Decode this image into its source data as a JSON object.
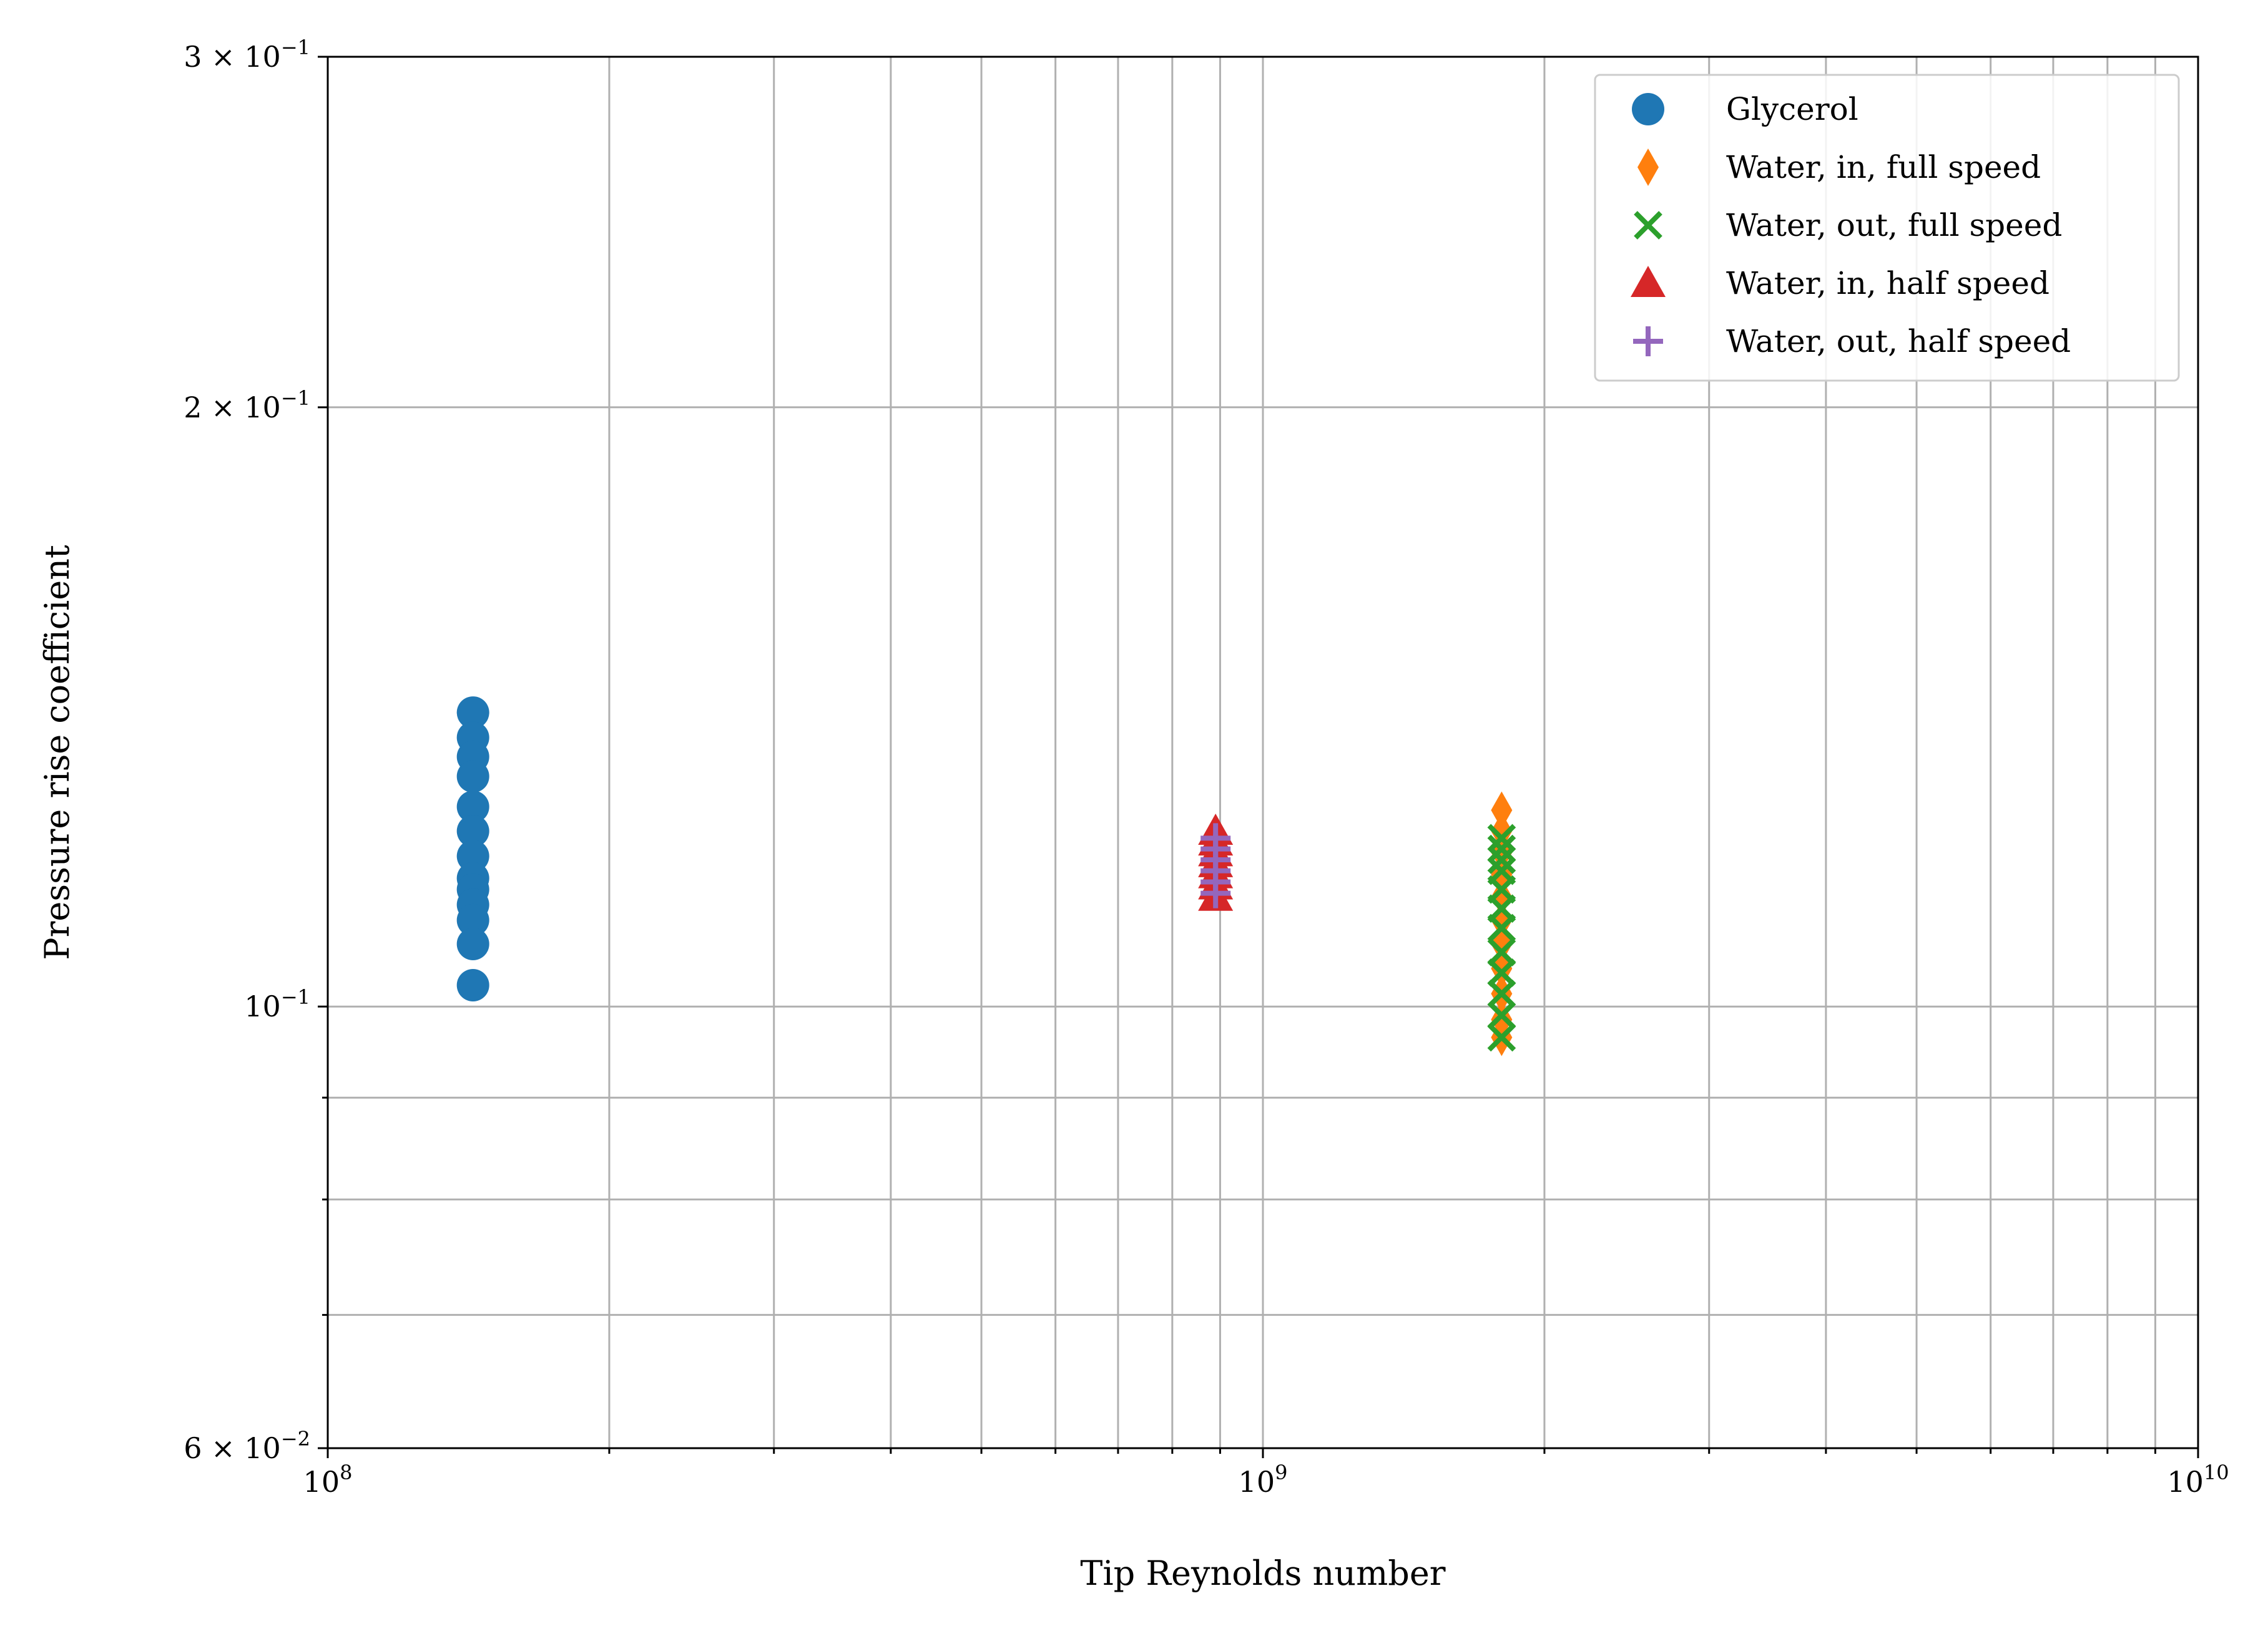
{
  "chart_data": {
    "type": "scatter",
    "title": "",
    "xlabel": "Tip Reynolds number",
    "ylabel": "Pressure rise coefficient",
    "xscale": "log",
    "yscale": "log",
    "xlim": [
      100000000,
      10000000000
    ],
    "ylim": [
      0.06,
      0.3
    ],
    "grid": "both",
    "legend_position": "top-right",
    "x_ticks": [
      {
        "value": 100000000,
        "base": "10",
        "exp": "8"
      },
      {
        "value": 1000000000,
        "base": "10",
        "exp": "9"
      },
      {
        "value": 10000000000,
        "base": "10",
        "exp": "10"
      }
    ],
    "y_ticks": [
      {
        "value": 0.06,
        "mant": "6 × ",
        "base": "10",
        "exp": "−2"
      },
      {
        "value": 0.1,
        "mant": "",
        "base": "10",
        "exp": "−1"
      },
      {
        "value": 0.2,
        "mant": "2 × ",
        "base": "10",
        "exp": "−1"
      },
      {
        "value": 0.3,
        "mant": "3 × ",
        "base": "10",
        "exp": "−1"
      }
    ],
    "series": [
      {
        "name": "Glycerol",
        "marker": "circle",
        "color": "#1f77b4",
        "points": [
          [
            143000000,
            0.1405
          ],
          [
            143000000,
            0.1365
          ],
          [
            143000000,
            0.1335
          ],
          [
            143000000,
            0.1305
          ],
          [
            143000000,
            0.126
          ],
          [
            143000000,
            0.1225
          ],
          [
            143000000,
            0.119
          ],
          [
            143000000,
            0.116
          ],
          [
            143000000,
            0.1145
          ],
          [
            143000000,
            0.1125
          ],
          [
            143000000,
            0.1105
          ],
          [
            143000000,
            0.1075
          ],
          [
            143000000,
            0.1025
          ]
        ]
      },
      {
        "name": "Water, in, full speed",
        "marker": "diamond",
        "color": "#ff7f0e",
        "points": [
          [
            1800000000,
            0.1255
          ],
          [
            1800000000,
            0.1225
          ],
          [
            1800000000,
            0.1195
          ],
          [
            1800000000,
            0.1165
          ],
          [
            1800000000,
            0.1135
          ],
          [
            1800000000,
            0.1105
          ],
          [
            1800000000,
            0.1075
          ],
          [
            1800000000,
            0.1045
          ],
          [
            1800000000,
            0.1015
          ],
          [
            1800000000,
            0.0985
          ],
          [
            1800000000,
            0.0965
          ]
        ]
      },
      {
        "name": "Water, out, full speed",
        "marker": "x",
        "color": "#2ca02c",
        "points": [
          [
            1800000000,
            0.1215
          ],
          [
            1800000000,
            0.12
          ],
          [
            1800000000,
            0.1185
          ],
          [
            1800000000,
            0.117
          ],
          [
            1800000000,
            0.1145
          ],
          [
            1800000000,
            0.112
          ],
          [
            1800000000,
            0.1095
          ],
          [
            1800000000,
            0.1065
          ],
          [
            1800000000,
            0.104
          ],
          [
            1800000000,
            0.1015
          ],
          [
            1800000000,
            0.099
          ],
          [
            1800000000,
            0.0965
          ]
        ]
      },
      {
        "name": "Water, in, half speed",
        "marker": "triangle",
        "color": "#d62728",
        "points": [
          [
            890000000,
            0.1225
          ],
          [
            890000000,
            0.121
          ],
          [
            890000000,
            0.1195
          ],
          [
            890000000,
            0.118
          ],
          [
            890000000,
            0.1165
          ],
          [
            890000000,
            0.115
          ],
          [
            890000000,
            0.1135
          ]
        ]
      },
      {
        "name": "Water, out, half speed",
        "marker": "plus",
        "color": "#9467bd",
        "points": [
          [
            890000000,
            0.1215
          ],
          [
            890000000,
            0.12
          ],
          [
            890000000,
            0.1185
          ],
          [
            890000000,
            0.117
          ],
          [
            890000000,
            0.1155
          ],
          [
            890000000,
            0.114
          ]
        ]
      }
    ]
  }
}
